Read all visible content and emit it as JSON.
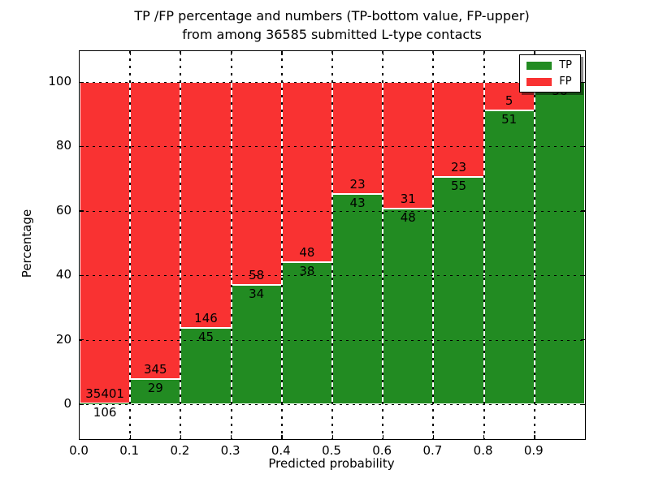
{
  "title": {
    "line1": "TP /FP percentage and numbers (TP-bottom value, FP-upper)",
    "line2": "from among 36585 submitted L-type contacts"
  },
  "axes": {
    "xlabel": "Predicted probability",
    "ylabel": "Percentage",
    "x_tick_labels": [
      "0.0",
      "0.1",
      "0.2",
      "0.3",
      "0.4",
      "0.5",
      "0.6",
      "0.7",
      "0.8",
      "0.9"
    ],
    "y_tick_labels": [
      "0",
      "20",
      "40",
      "60",
      "80",
      "100"
    ],
    "y_tick_values": [
      0,
      20,
      40,
      60,
      80,
      100
    ]
  },
  "legend": {
    "position": "upper right",
    "items": [
      {
        "label": "TP",
        "color": "#228B22"
      },
      {
        "label": "FP",
        "color": "#F93232"
      }
    ]
  },
  "colors": {
    "tp": "#228B22",
    "fp": "#F93232",
    "frame": "#000000",
    "background": "#FFFFFF",
    "label_text": "#000000"
  },
  "chart_data": {
    "type": "bar",
    "stacked": true,
    "normalized_to_percent": true,
    "title": "TP /FP percentage and numbers (TP-bottom value, FP-upper) from among 36585 submitted L-type contacts",
    "xlabel": "Predicted probability",
    "ylabel": "Percentage",
    "total_contacts": 36585,
    "x_bin_edges": [
      0.0,
      0.1,
      0.2,
      0.3,
      0.4,
      0.5,
      0.6,
      0.7,
      0.8,
      0.9,
      1.0
    ],
    "xlim": [
      0.0,
      1.0
    ],
    "ylim": [
      -11,
      110
    ],
    "grid": true,
    "legend_position": "upper right",
    "series": [
      {
        "name": "TP",
        "counts": [
          106,
          29,
          45,
          34,
          38,
          43,
          48,
          55,
          51,
          56
        ]
      },
      {
        "name": "FP",
        "counts": [
          35401,
          345,
          146,
          58,
          48,
          23,
          31,
          23,
          5,
          0
        ]
      }
    ],
    "tp_percent_of_bin": [
      0.3,
      7.75,
      23.56,
      36.96,
      44.19,
      65.15,
      60.76,
      70.51,
      91.07,
      100.0
    ]
  }
}
